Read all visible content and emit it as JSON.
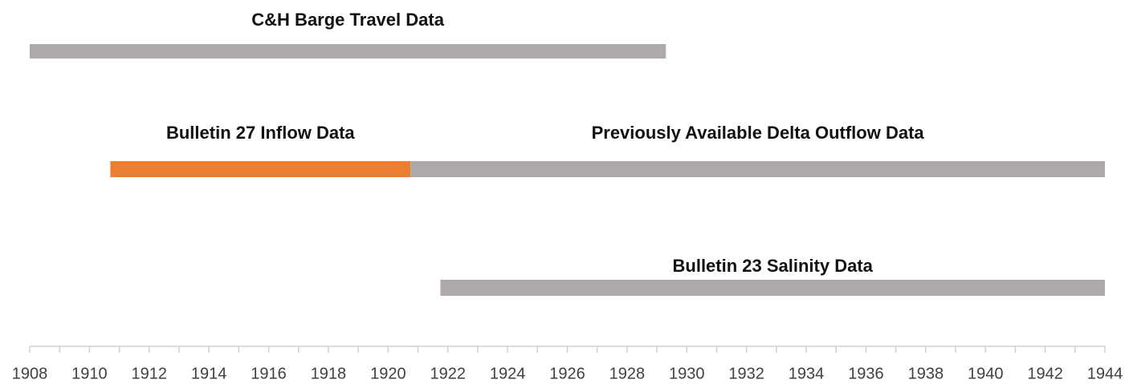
{
  "chart_data": {
    "type": "timeline",
    "lanes": [
      [
        {
          "name": "C&H Barge Travel Data",
          "color": "#ada9a8",
          "start": 1908,
          "end": 1929.3
        }
      ],
      [
        {
          "name": "Bulletin 27 Inflow Data",
          "color": "#ed7d31",
          "start": 1910.7,
          "end": 1920.75
        },
        {
          "name": "Previously Available Delta Outflow Data",
          "color": "#ada9a8",
          "start": 1920.75,
          "end": 1944
        }
      ],
      [
        {
          "name": "Bulletin 23 Salinity Data",
          "color": "#ada9a8",
          "start": 1921.75,
          "end": 1944
        }
      ]
    ],
    "xlim": [
      1908,
      1944
    ],
    "xticks": [
      1908,
      1910,
      1912,
      1914,
      1916,
      1918,
      1920,
      1922,
      1924,
      1926,
      1928,
      1930,
      1932,
      1934,
      1936,
      1938,
      1940,
      1942,
      1944
    ]
  }
}
